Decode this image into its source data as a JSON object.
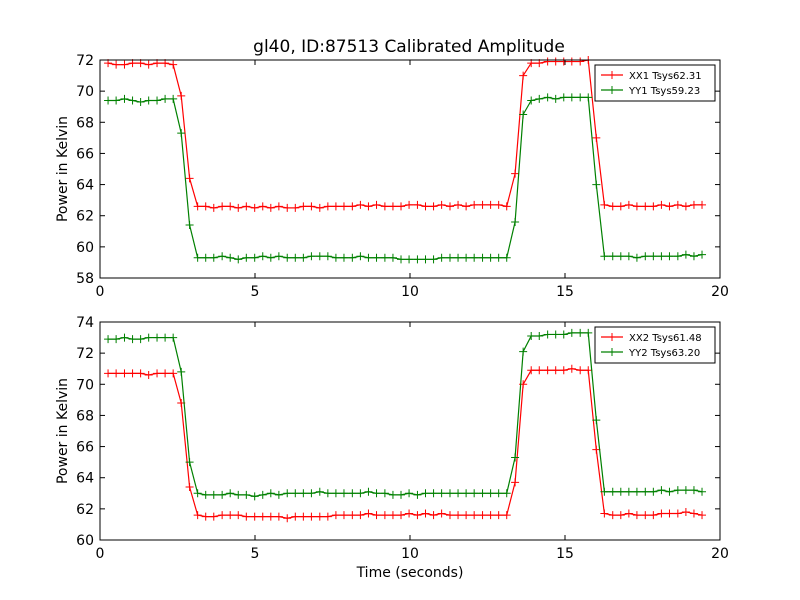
{
  "title": "gl40, ID:87513 Calibrated Amplitude",
  "colors": {
    "xx": "#ff0000",
    "yy": "#008000"
  },
  "chart_data": [
    {
      "type": "line",
      "title": "gl40, ID:87513 Calibrated Amplitude",
      "xlabel": "",
      "ylabel": "Power in Kelvin",
      "xlim": [
        0,
        20
      ],
      "ylim": [
        58,
        72
      ],
      "xticks": [
        0,
        5,
        10,
        15,
        20
      ],
      "yticks": [
        58,
        60,
        62,
        64,
        66,
        68,
        70,
        72
      ],
      "grid": false,
      "legend_position": "top-right",
      "x": [
        0.26,
        0.52,
        0.79,
        1.05,
        1.31,
        1.57,
        1.84,
        2.1,
        2.36,
        2.62,
        2.89,
        3.15,
        3.41,
        3.67,
        3.94,
        4.2,
        4.46,
        4.72,
        4.99,
        5.25,
        5.51,
        5.77,
        6.04,
        6.3,
        6.56,
        6.82,
        7.09,
        7.35,
        7.61,
        7.87,
        8.14,
        8.4,
        8.66,
        8.92,
        9.19,
        9.45,
        9.71,
        9.97,
        10.24,
        10.5,
        10.76,
        11.02,
        11.29,
        11.55,
        11.81,
        12.07,
        12.34,
        12.6,
        12.86,
        13.12,
        13.39,
        13.65,
        13.91,
        14.17,
        14.44,
        14.7,
        14.96,
        15.22,
        15.49,
        15.75,
        16.01,
        16.27,
        16.54,
        16.8,
        17.06,
        17.32,
        17.59,
        17.85,
        18.11,
        18.37,
        18.64,
        18.9,
        19.16,
        19.42
      ],
      "series": [
        {
          "name": "XX1 Tsys62.31",
          "color": "#ff0000",
          "values": [
            71.8,
            71.7,
            71.7,
            71.8,
            71.8,
            71.7,
            71.8,
            71.8,
            71.7,
            69.7,
            64.4,
            62.6,
            62.6,
            62.5,
            62.6,
            62.6,
            62.5,
            62.6,
            62.5,
            62.6,
            62.5,
            62.6,
            62.5,
            62.5,
            62.6,
            62.6,
            62.5,
            62.6,
            62.6,
            62.6,
            62.6,
            62.7,
            62.6,
            62.7,
            62.6,
            62.6,
            62.6,
            62.7,
            62.7,
            62.6,
            62.6,
            62.7,
            62.6,
            62.7,
            62.6,
            62.7,
            62.7,
            62.7,
            62.7,
            62.6,
            64.7,
            71.0,
            71.8,
            71.8,
            71.9,
            71.9,
            71.9,
            71.9,
            71.9,
            72.0,
            67.0,
            62.7,
            62.6,
            62.6,
            62.7,
            62.6,
            62.6,
            62.6,
            62.7,
            62.6,
            62.7,
            62.6,
            62.7,
            62.7
          ]
        },
        {
          "name": "YY1 Tsys59.23",
          "color": "#008000",
          "values": [
            69.4,
            69.4,
            69.5,
            69.4,
            69.3,
            69.4,
            69.4,
            69.5,
            69.5,
            67.3,
            61.4,
            59.3,
            59.3,
            59.3,
            59.4,
            59.3,
            59.2,
            59.3,
            59.3,
            59.4,
            59.3,
            59.4,
            59.3,
            59.3,
            59.3,
            59.4,
            59.4,
            59.4,
            59.3,
            59.3,
            59.3,
            59.4,
            59.3,
            59.3,
            59.3,
            59.3,
            59.2,
            59.2,
            59.2,
            59.2,
            59.2,
            59.3,
            59.3,
            59.3,
            59.3,
            59.3,
            59.3,
            59.3,
            59.3,
            59.3,
            61.6,
            68.5,
            69.4,
            69.5,
            69.6,
            69.5,
            69.6,
            69.6,
            69.6,
            69.6,
            64.0,
            59.4,
            59.4,
            59.4,
            59.4,
            59.3,
            59.4,
            59.4,
            59.4,
            59.4,
            59.4,
            59.5,
            59.4,
            59.5
          ]
        }
      ]
    },
    {
      "type": "line",
      "title": "",
      "xlabel": "Time (seconds)",
      "ylabel": "Power in Kelvin",
      "xlim": [
        0,
        20
      ],
      "ylim": [
        60,
        74
      ],
      "xticks": [
        0,
        5,
        10,
        15,
        20
      ],
      "yticks": [
        60,
        62,
        64,
        66,
        68,
        70,
        72,
        74
      ],
      "grid": false,
      "legend_position": "top-right",
      "x": [
        0.26,
        0.52,
        0.79,
        1.05,
        1.31,
        1.57,
        1.84,
        2.1,
        2.36,
        2.62,
        2.89,
        3.15,
        3.41,
        3.67,
        3.94,
        4.2,
        4.46,
        4.72,
        4.99,
        5.25,
        5.51,
        5.77,
        6.04,
        6.3,
        6.56,
        6.82,
        7.09,
        7.35,
        7.61,
        7.87,
        8.14,
        8.4,
        8.66,
        8.92,
        9.19,
        9.45,
        9.71,
        9.97,
        10.24,
        10.5,
        10.76,
        11.02,
        11.29,
        11.55,
        11.81,
        12.07,
        12.34,
        12.6,
        12.86,
        13.12,
        13.39,
        13.65,
        13.91,
        14.17,
        14.44,
        14.7,
        14.96,
        15.22,
        15.49,
        15.75,
        16.01,
        16.27,
        16.54,
        16.8,
        17.06,
        17.32,
        17.59,
        17.85,
        18.11,
        18.37,
        18.64,
        18.9,
        19.16,
        19.42
      ],
      "series": [
        {
          "name": "XX2 Tsys61.48",
          "color": "#ff0000",
          "values": [
            70.7,
            70.7,
            70.7,
            70.7,
            70.7,
            70.6,
            70.7,
            70.7,
            70.7,
            68.8,
            63.4,
            61.6,
            61.5,
            61.5,
            61.6,
            61.6,
            61.6,
            61.5,
            61.5,
            61.5,
            61.5,
            61.5,
            61.4,
            61.5,
            61.5,
            61.5,
            61.5,
            61.5,
            61.6,
            61.6,
            61.6,
            61.6,
            61.7,
            61.6,
            61.6,
            61.6,
            61.6,
            61.7,
            61.6,
            61.7,
            61.6,
            61.7,
            61.6,
            61.6,
            61.6,
            61.6,
            61.6,
            61.6,
            61.6,
            61.6,
            63.7,
            70.0,
            70.9,
            70.9,
            70.9,
            70.9,
            70.9,
            71.0,
            70.9,
            70.9,
            65.8,
            61.7,
            61.6,
            61.6,
            61.7,
            61.6,
            61.6,
            61.6,
            61.7,
            61.7,
            61.7,
            61.8,
            61.7,
            61.6
          ]
        },
        {
          "name": "YY2 Tsys63.20",
          "color": "#008000",
          "values": [
            72.9,
            72.9,
            73.0,
            72.9,
            72.9,
            73.0,
            73.0,
            73.0,
            73.0,
            70.8,
            65.0,
            63.0,
            62.9,
            62.9,
            62.9,
            63.0,
            62.9,
            62.9,
            62.8,
            62.9,
            63.0,
            62.9,
            63.0,
            63.0,
            63.0,
            63.0,
            63.1,
            63.0,
            63.0,
            63.0,
            63.0,
            63.0,
            63.1,
            63.0,
            63.0,
            62.9,
            62.9,
            63.0,
            62.9,
            63.0,
            63.0,
            63.0,
            63.0,
            63.0,
            63.0,
            63.0,
            63.0,
            63.0,
            63.0,
            63.0,
            65.3,
            72.1,
            73.1,
            73.1,
            73.2,
            73.2,
            73.2,
            73.3,
            73.3,
            73.3,
            67.7,
            63.1,
            63.1,
            63.1,
            63.1,
            63.1,
            63.1,
            63.1,
            63.2,
            63.1,
            63.2,
            63.2,
            63.2,
            63.1
          ]
        }
      ]
    }
  ]
}
